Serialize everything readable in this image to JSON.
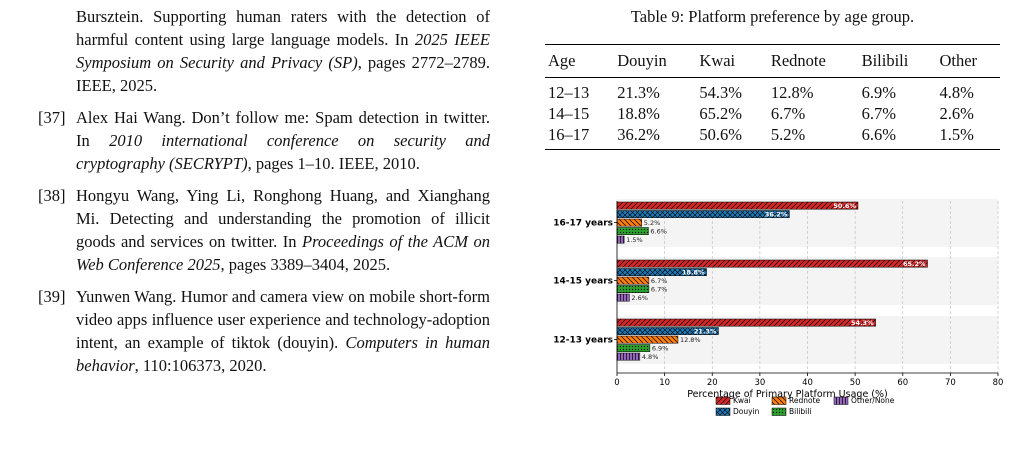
{
  "references": {
    "continuation": {
      "text_plain_1": "Bursztein. Supporting human raters with the detection of harmful content using large language models. In ",
      "venue": "2025 IEEE Symposium on Security and Privacy (SP)",
      "text_plain_2": ", pages 2772–2789. IEEE, 2025."
    },
    "items": [
      {
        "number": "[37]",
        "text_plain_1": "Alex Hai Wang. Don’t follow me: Spam detection in twitter. In ",
        "venue": "2010 international conference on security and cryptography (SECRYPT)",
        "text_plain_2": ", pages 1–10. IEEE, 2010."
      },
      {
        "number": "[38]",
        "text_plain_1": "Hongyu Wang, Ying Li, Ronghong Huang, and Xianghang Mi. Detecting and understanding the promotion of illicit goods and services on twitter. In ",
        "venue": "Proceedings of the ACM on Web Conference 2025",
        "text_plain_2": ", pages 3389–3404, 2025."
      },
      {
        "number": "[39]",
        "text_plain_1": "Yunwen Wang. Humor and camera view on mobile short-form video apps influence user experience and technology-adoption intent, an example of tiktok (douyin). ",
        "venue": "Computers in human behavior",
        "text_plain_2": ", 110:106373, 2020."
      }
    ]
  },
  "table": {
    "caption": "Table 9: Platform preference by age group.",
    "headers": [
      "Age",
      "Douyin",
      "Kwai",
      "Rednote",
      "Bilibili",
      "Other"
    ],
    "rows": [
      [
        "12–13",
        "21.3%",
        "54.3%",
        "12.8%",
        "6.9%",
        "4.8%"
      ],
      [
        "14–15",
        "18.8%",
        "65.2%",
        "6.7%",
        "6.7%",
        "2.6%"
      ],
      [
        "16–17",
        "36.2%",
        "50.6%",
        "5.2%",
        "6.6%",
        "1.5%"
      ]
    ]
  },
  "chart_data": {
    "type": "bar",
    "orientation": "horizontal",
    "categories": [
      "16-17 years",
      "14-15 years",
      "12-13 years"
    ],
    "series": [
      {
        "name": "Kwai",
        "values": [
          50.6,
          65.2,
          54.3
        ],
        "labels": [
          "50.6%",
          "65.2%",
          "54.3%"
        ],
        "color": "#d62728"
      },
      {
        "name": "Douyin",
        "values": [
          36.2,
          18.8,
          21.3
        ],
        "labels": [
          "36.2%",
          "18.8%",
          "21.3%"
        ],
        "color": "#1f77b4"
      },
      {
        "name": "Rednote",
        "values": [
          5.2,
          6.7,
          12.8
        ],
        "labels": [
          "5.2%",
          "6.7%",
          "12.8%"
        ],
        "color": "#ff7f0e"
      },
      {
        "name": "Bilibili",
        "values": [
          6.6,
          6.7,
          6.9
        ],
        "labels": [
          "6.6%",
          "6.7%",
          "6.9%"
        ],
        "color": "#2ca02c"
      },
      {
        "name": "Other/None",
        "values": [
          1.5,
          2.6,
          4.8
        ],
        "labels": [
          "1.5%",
          "2.6%",
          "4.8%"
        ],
        "color": "#9467bd"
      }
    ],
    "xlabel": "Percentage of Primary Platform Usage (%)",
    "xlim": [
      0,
      80
    ],
    "xticks": [
      "0",
      "10",
      "20",
      "30",
      "40",
      "50",
      "60",
      "70",
      "80"
    ],
    "grid": "vertical dashed",
    "legend": "bottom-center"
  }
}
